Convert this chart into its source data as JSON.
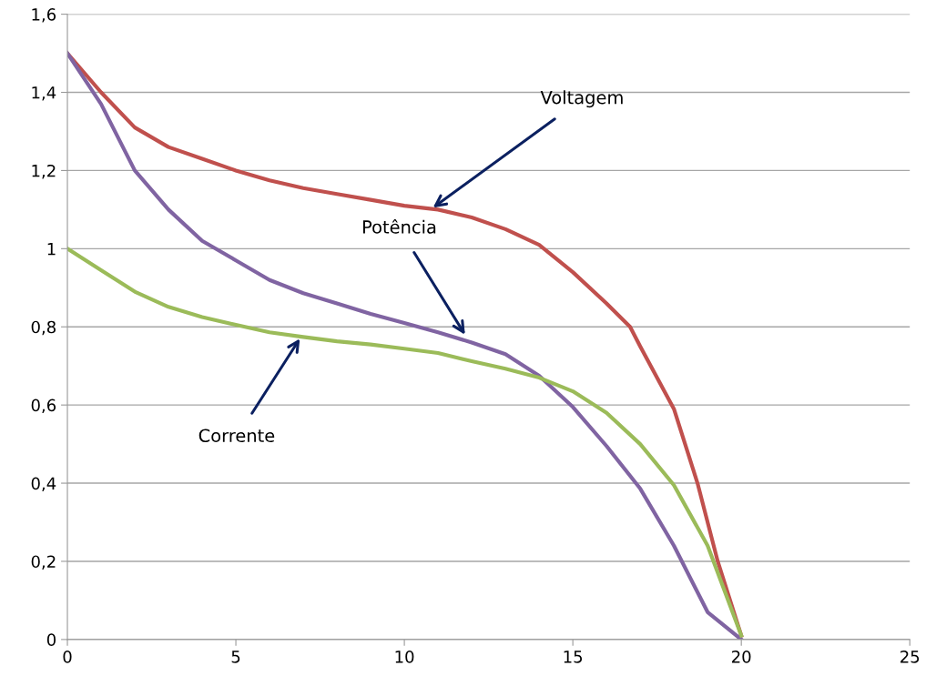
{
  "chart_data": {
    "type": "line",
    "x": [
      0,
      1,
      2,
      3,
      4,
      5,
      6,
      7,
      8,
      9,
      10,
      11,
      12,
      13,
      14,
      15,
      16,
      16.7,
      17,
      18,
      18.7,
      19.3,
      20
    ],
    "series": [
      {
        "color": "#c0504d",
        "values": [
          1.5,
          1.4,
          1.31,
          1.26,
          1.23,
          1.2,
          1.175,
          1.155,
          1.14,
          1.125,
          1.11,
          1.1,
          1.08,
          1.05,
          1.01,
          0.94,
          0.86,
          0.8,
          0.75,
          0.59,
          0.4,
          0.2,
          0.01
        ]
      },
      {
        "color": "#8064a2",
        "x": [
          0,
          1,
          2,
          3,
          4,
          5,
          6,
          7,
          8,
          9,
          10,
          11,
          12,
          13,
          14,
          15,
          16,
          17,
          18,
          19,
          20
        ],
        "values": [
          1.5,
          1.37,
          1.2,
          1.1,
          1.02,
          0.97,
          0.92,
          0.886,
          0.86,
          0.833,
          0.81,
          0.786,
          0.76,
          0.73,
          0.675,
          0.595,
          0.495,
          0.386,
          0.24,
          0.07,
          0
        ]
      },
      {
        "color": "#9bbb59",
        "x": [
          0,
          1,
          2,
          3,
          4,
          5,
          6,
          7,
          8,
          9,
          10,
          11,
          12,
          13,
          14,
          15,
          16,
          17,
          18,
          19,
          20
        ],
        "values": [
          1.0,
          0.945,
          0.89,
          0.851,
          0.825,
          0.805,
          0.786,
          0.774,
          0.763,
          0.755,
          0.744,
          0.733,
          0.712,
          0.693,
          0.67,
          0.635,
          0.58,
          0.5,
          0.395,
          0.24,
          0.01
        ]
      }
    ],
    "annotations": [
      {
        "text": "Voltagem",
        "x": 10.85,
        "y": 1.105
      },
      {
        "text": "Potência",
        "x": 11.8,
        "y": 0.78
      },
      {
        "text": "Corrente",
        "x": 6.9,
        "y": 0.77
      }
    ],
    "xlim": [
      0,
      25
    ],
    "xticks": [
      0,
      5,
      10,
      15,
      20,
      25
    ],
    "ylim": [
      0,
      1.6
    ],
    "yticks": [
      0,
      {
        "value": 0.2,
        "label": "0,2"
      },
      {
        "value": 0.4,
        "label": "0,4"
      },
      {
        "value": 0.6,
        "label": "0,6"
      },
      {
        "value": 0.8,
        "label": "0,8"
      },
      1,
      {
        "value": 1.2,
        "label": "1,2"
      },
      {
        "value": 1.4,
        "label": "1,4"
      },
      {
        "value": 1.6,
        "label": "1,6"
      }
    ],
    "grid": "y",
    "marker": "none",
    "line_style": "solid"
  }
}
